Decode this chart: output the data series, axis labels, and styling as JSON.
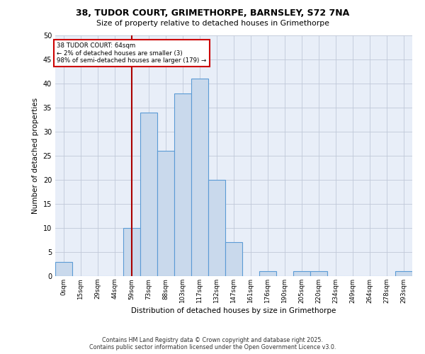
{
  "title1": "38, TUDOR COURT, GRIMETHORPE, BARNSLEY, S72 7NA",
  "title2": "Size of property relative to detached houses in Grimethorpe",
  "xlabel": "Distribution of detached houses by size in Grimethorpe",
  "ylabel": "Number of detached properties",
  "bar_labels": [
    "0sqm",
    "15sqm",
    "29sqm",
    "44sqm",
    "59sqm",
    "73sqm",
    "88sqm",
    "103sqm",
    "117sqm",
    "132sqm",
    "147sqm",
    "161sqm",
    "176sqm",
    "190sqm",
    "205sqm",
    "220sqm",
    "234sqm",
    "249sqm",
    "264sqm",
    "278sqm",
    "293sqm"
  ],
  "bar_values": [
    3,
    0,
    0,
    0,
    10,
    34,
    26,
    38,
    41,
    20,
    7,
    0,
    1,
    0,
    1,
    1,
    0,
    0,
    0,
    0,
    1
  ],
  "bar_color": "#c9d9ec",
  "bar_edge_color": "#5b9bd5",
  "annotation_text": "38 TUDOR COURT: 64sqm\n← 2% of detached houses are smaller (3)\n98% of semi-detached houses are larger (179) →",
  "annotation_box_color": "#ffffff",
  "annotation_box_edge": "#cc0000",
  "vline_x_index": 4,
  "vline_color": "#aa0000",
  "bin_width": 14.5,
  "ylim": [
    0,
    50
  ],
  "yticks": [
    0,
    5,
    10,
    15,
    20,
    25,
    30,
    35,
    40,
    45,
    50
  ],
  "footer": "Contains HM Land Registry data © Crown copyright and database right 2025.\nContains public sector information licensed under the Open Government Licence v3.0.",
  "plot_background": "#e8eef8"
}
